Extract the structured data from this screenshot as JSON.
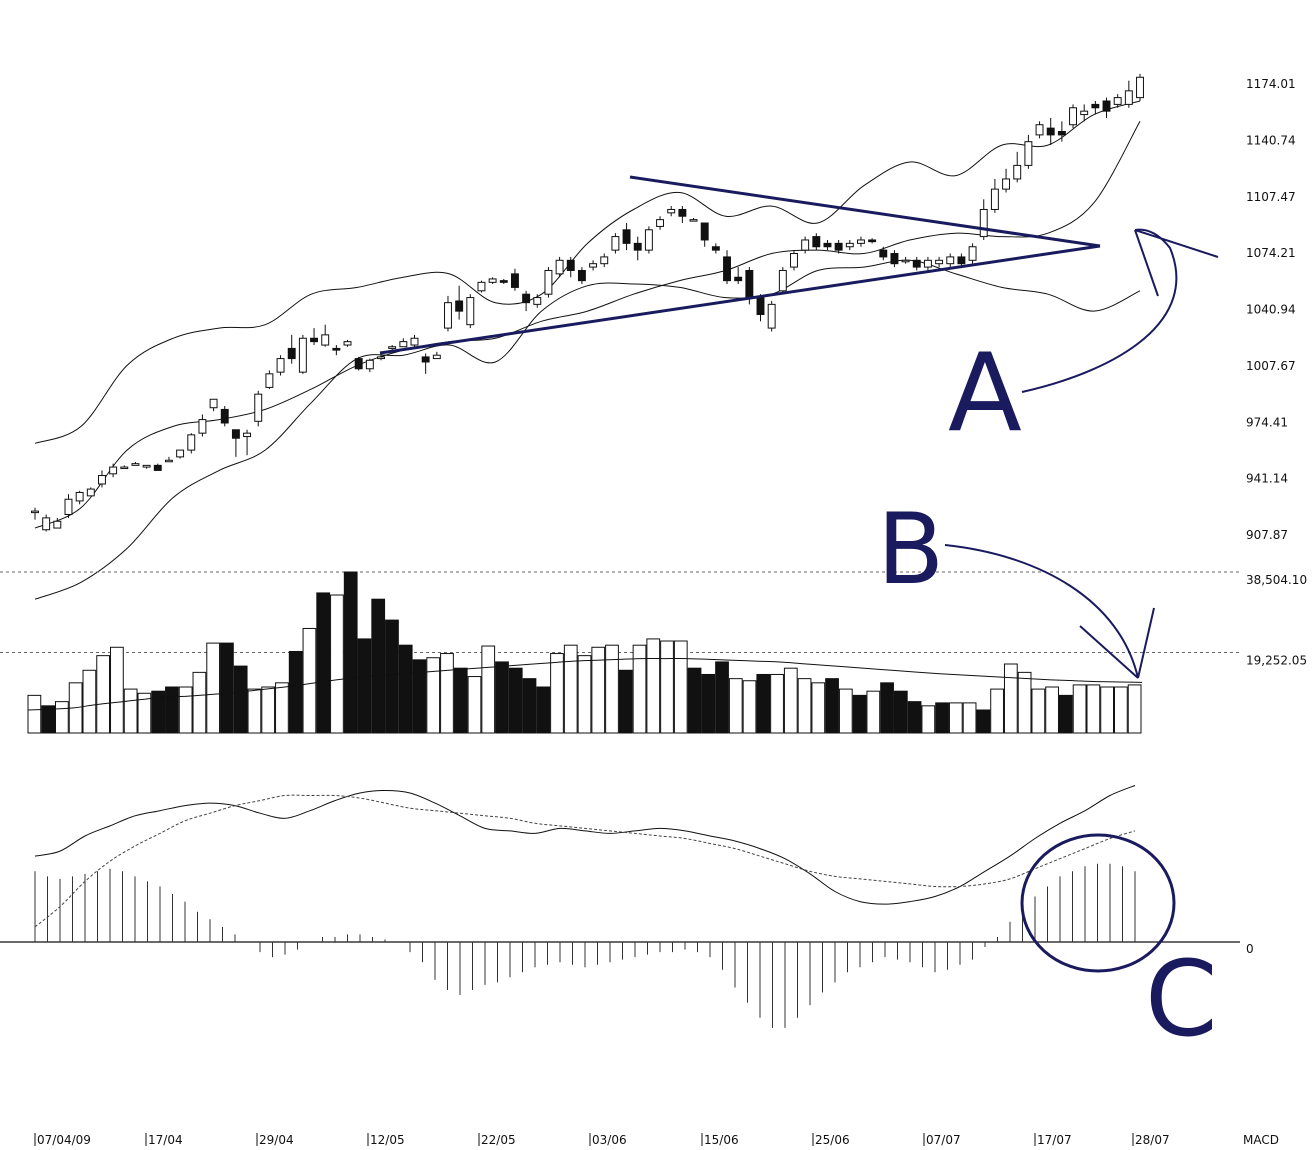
{
  "chart_data": [
    {
      "type": "candlestick",
      "panel": "price",
      "yticks": [
        "1174.01",
        "1140.74",
        "1107.47",
        "1074.21",
        "1040.94",
        "1007.67",
        "974.41",
        "941.14",
        "907.87"
      ],
      "ytick_values": [
        1174.01,
        1140.74,
        1107.47,
        1074.21,
        1040.94,
        1007.67,
        974.41,
        941.14,
        907.87
      ],
      "ylim": [
        902,
        1200
      ],
      "bollinger": {
        "upper": [
          962,
          972,
          1008,
          1024,
          1030,
          1032,
          1050,
          1054,
          1060,
          1062,
          1045,
          1050,
          1080,
          1100,
          1110,
          1096,
          1102,
          1092,
          1114,
          1128,
          1120,
          1138,
          1138,
          1156,
          1164
        ],
        "middle": [
          912,
          924,
          958,
          972,
          976,
          982,
          994,
          1008,
          1017,
          1022,
          1024,
          1034,
          1040,
          1050,
          1058,
          1064,
          1074,
          1076,
          1074,
          1082,
          1086,
          1084,
          1086,
          1104,
          1152
        ],
        "lower": [
          870,
          880,
          900,
          930,
          946,
          958,
          986,
          1012,
          1014,
          1020,
          1010,
          1040,
          1055,
          1056,
          1054,
          1048,
          1050,
          1064,
          1066,
          1070,
          1062,
          1054,
          1050,
          1040,
          1052
        ]
      },
      "candles": [
        [
          922,
          922,
          917,
          924
        ],
        [
          911,
          918,
          910,
          920
        ],
        [
          912,
          916,
          912,
          918
        ],
        [
          920,
          929,
          918,
          932
        ],
        [
          928,
          933,
          926,
          934
        ],
        [
          931,
          935,
          931,
          936
        ],
        [
          938,
          943,
          936,
          946
        ],
        [
          944,
          948,
          942,
          950
        ],
        [
          948,
          948,
          947,
          949
        ],
        [
          949,
          950,
          949,
          951
        ],
        [
          948,
          949,
          947,
          949
        ],
        [
          949,
          946,
          946,
          950
        ],
        [
          952,
          952,
          951,
          954
        ],
        [
          954,
          958,
          953,
          958
        ],
        [
          958,
          967,
          956,
          968
        ],
        [
          968,
          976,
          966,
          979
        ],
        [
          983,
          988,
          981,
          988
        ],
        [
          982,
          974,
          972,
          984
        ],
        [
          970,
          965,
          954,
          970
        ],
        [
          966,
          968,
          955,
          970
        ],
        [
          975,
          991,
          972,
          993
        ],
        [
          995,
          1003,
          994,
          1005
        ],
        [
          1004,
          1012,
          1002,
          1014
        ],
        [
          1018,
          1012,
          1009,
          1026
        ],
        [
          1004,
          1024,
          1003,
          1026
        ],
        [
          1024,
          1022,
          1020,
          1030
        ],
        [
          1020,
          1026,
          1019,
          1032
        ],
        [
          1018,
          1017,
          1014,
          1020
        ],
        [
          1020,
          1022,
          1019,
          1023
        ],
        [
          1012,
          1006,
          1005,
          1013
        ],
        [
          1006,
          1011,
          1004,
          1012
        ],
        [
          1012,
          1013,
          1011,
          1015
        ],
        [
          1018,
          1019,
          1017,
          1020
        ],
        [
          1019,
          1022,
          1019,
          1024
        ],
        [
          1020,
          1024,
          1019,
          1026
        ],
        [
          1013,
          1010,
          1003,
          1015
        ],
        [
          1012,
          1014,
          1012,
          1016
        ],
        [
          1030,
          1045,
          1028,
          1049
        ],
        [
          1046,
          1040,
          1035,
          1055
        ],
        [
          1032,
          1048,
          1030,
          1050
        ],
        [
          1052,
          1057,
          1051,
          1058
        ],
        [
          1057,
          1059,
          1056,
          1060
        ],
        [
          1058,
          1057,
          1056,
          1059
        ],
        [
          1062,
          1054,
          1052,
          1065
        ],
        [
          1050,
          1045,
          1040,
          1052
        ],
        [
          1044,
          1048,
          1042,
          1050
        ],
        [
          1050,
          1064,
          1048,
          1066
        ],
        [
          1062,
          1070,
          1060,
          1072
        ],
        [
          1070,
          1064,
          1060,
          1072
        ],
        [
          1064,
          1058,
          1056,
          1066
        ],
        [
          1066,
          1068,
          1064,
          1070
        ],
        [
          1068,
          1072,
          1066,
          1074
        ],
        [
          1076,
          1084,
          1074,
          1086
        ],
        [
          1088,
          1080,
          1076,
          1092
        ],
        [
          1080,
          1076,
          1070,
          1084
        ],
        [
          1076,
          1088,
          1074,
          1090
        ],
        [
          1090,
          1094,
          1088,
          1096
        ],
        [
          1098,
          1100,
          1096,
          1102
        ],
        [
          1100,
          1096,
          1092,
          1102
        ],
        [
          1094,
          1094,
          1093,
          1095
        ],
        [
          1092,
          1082,
          1078,
          1092
        ],
        [
          1078,
          1076,
          1074,
          1080
        ],
        [
          1072,
          1058,
          1056,
          1076
        ],
        [
          1060,
          1058,
          1056,
          1066
        ],
        [
          1064,
          1048,
          1044,
          1066
        ],
        [
          1048,
          1038,
          1034,
          1050
        ],
        [
          1030,
          1044,
          1028,
          1046
        ],
        [
          1052,
          1064,
          1050,
          1066
        ],
        [
          1066,
          1074,
          1064,
          1076
        ],
        [
          1076,
          1082,
          1074,
          1084
        ],
        [
          1084,
          1078,
          1076,
          1086
        ],
        [
          1080,
          1078,
          1076,
          1082
        ],
        [
          1080,
          1076,
          1074,
          1082
        ],
        [
          1078,
          1080,
          1076,
          1082
        ],
        [
          1080,
          1082,
          1078,
          1084
        ],
        [
          1082,
          1081,
          1080,
          1083
        ],
        [
          1076,
          1072,
          1070,
          1078
        ],
        [
          1074,
          1068,
          1066,
          1076
        ],
        [
          1070,
          1070,
          1068,
          1072
        ],
        [
          1070,
          1066,
          1064,
          1072
        ],
        [
          1066,
          1070,
          1064,
          1072
        ],
        [
          1068,
          1070,
          1066,
          1072
        ],
        [
          1068,
          1072,
          1066,
          1074
        ],
        [
          1072,
          1068,
          1066,
          1074
        ],
        [
          1070,
          1078,
          1068,
          1080
        ],
        [
          1084,
          1100,
          1082,
          1106
        ],
        [
          1100,
          1112,
          1098,
          1118
        ],
        [
          1112,
          1118,
          1110,
          1124
        ],
        [
          1118,
          1126,
          1116,
          1134
        ],
        [
          1126,
          1140,
          1124,
          1144
        ],
        [
          1144,
          1150,
          1142,
          1152
        ],
        [
          1148,
          1144,
          1138,
          1154
        ],
        [
          1146,
          1144,
          1140,
          1152
        ],
        [
          1150,
          1160,
          1148,
          1162
        ],
        [
          1156,
          1158,
          1152,
          1162
        ],
        [
          1162,
          1160,
          1156,
          1164
        ],
        [
          1164,
          1158,
          1154,
          1166
        ],
        [
          1162,
          1166,
          1160,
          1168
        ],
        [
          1162,
          1170,
          1160,
          1176
        ],
        [
          1166,
          1178,
          1164,
          1180
        ]
      ]
    },
    {
      "type": "bar",
      "panel": "volume",
      "yticks": [
        "38,504.10",
        "19,252.05"
      ],
      "ytick_values": [
        38504.1,
        19252.05
      ],
      "ylim": [
        0,
        38504.1
      ],
      "bars": [
        [
          9000,
          false
        ],
        [
          6500,
          true
        ],
        [
          7500,
          false
        ],
        [
          12000,
          false
        ],
        [
          15000,
          false
        ],
        [
          18500,
          false
        ],
        [
          20500,
          false
        ],
        [
          10500,
          false
        ],
        [
          9500,
          false
        ],
        [
          10000,
          true
        ],
        [
          11000,
          true
        ],
        [
          11000,
          false
        ],
        [
          14500,
          false
        ],
        [
          21500,
          false
        ],
        [
          21500,
          true
        ],
        [
          16000,
          true
        ],
        [
          10500,
          false
        ],
        [
          11000,
          false
        ],
        [
          12000,
          false
        ],
        [
          19500,
          true
        ],
        [
          25000,
          false
        ],
        [
          33500,
          true
        ],
        [
          33000,
          false
        ],
        [
          38504,
          true
        ],
        [
          22500,
          true
        ],
        [
          32000,
          true
        ],
        [
          27000,
          true
        ],
        [
          21000,
          true
        ],
        [
          17500,
          true
        ],
        [
          18000,
          false
        ],
        [
          19000,
          false
        ],
        [
          15500,
          true
        ],
        [
          13500,
          false
        ],
        [
          20800,
          false
        ],
        [
          17000,
          true
        ],
        [
          15500,
          true
        ],
        [
          13000,
          true
        ],
        [
          11000,
          true
        ],
        [
          19000,
          false
        ],
        [
          21000,
          false
        ],
        [
          18500,
          false
        ],
        [
          20500,
          false
        ],
        [
          21000,
          false
        ],
        [
          15000,
          true
        ],
        [
          21000,
          false
        ],
        [
          22500,
          false
        ],
        [
          22000,
          false
        ],
        [
          22000,
          false
        ],
        [
          15500,
          true
        ],
        [
          14000,
          true
        ],
        [
          17000,
          true
        ],
        [
          13000,
          false
        ],
        [
          12500,
          false
        ],
        [
          14000,
          true
        ],
        [
          14000,
          false
        ],
        [
          15500,
          false
        ],
        [
          13000,
          false
        ],
        [
          12000,
          false
        ],
        [
          13000,
          true
        ],
        [
          10500,
          false
        ],
        [
          9000,
          true
        ],
        [
          10000,
          false
        ],
        [
          12000,
          true
        ],
        [
          10000,
          true
        ],
        [
          7500,
          true
        ],
        [
          6500,
          false
        ],
        [
          7200,
          true
        ],
        [
          7200,
          false
        ],
        [
          7200,
          false
        ],
        [
          5500,
          true
        ],
        [
          10500,
          false
        ],
        [
          16500,
          false
        ],
        [
          14500,
          false
        ],
        [
          10500,
          false
        ],
        [
          11000,
          false
        ],
        [
          9000,
          true
        ],
        [
          11500,
          false
        ],
        [
          11500,
          false
        ],
        [
          11000,
          false
        ],
        [
          11000,
          false
        ],
        [
          11500,
          false
        ]
      ],
      "average": [
        5500,
        5700,
        6000,
        6800,
        7400,
        8000,
        8600,
        8800,
        9200,
        9600,
        10200,
        10800,
        11500,
        12300,
        13000,
        13600,
        14000,
        14400,
        14800,
        15200,
        15600,
        16000,
        16400,
        16800,
        17200,
        17400,
        17600,
        17800,
        17800,
        17800,
        17600,
        17400,
        17200,
        17000,
        16600,
        16200,
        15800,
        15400,
        15000,
        14600,
        14200,
        13900,
        13600,
        13300,
        13000,
        12700,
        12500,
        12300,
        12200,
        12100
      ]
    },
    {
      "type": "macd",
      "panel": "macd",
      "yticks": [
        "0"
      ],
      "ytick_values": [
        0
      ],
      "ylim": [
        -24,
        29
      ],
      "macd": [
        17,
        18,
        21,
        23,
        25,
        26,
        27,
        27.5,
        27,
        25.5,
        24.5,
        26,
        28,
        29.5,
        30,
        29.5,
        27.5,
        25,
        22.5,
        22,
        21.5,
        22.5,
        22,
        21.5,
        22,
        22.5,
        22,
        21,
        20,
        18.5,
        16.5,
        13.5,
        10,
        8,
        7.5,
        8,
        9,
        11,
        14,
        17,
        20.5,
        23.5,
        26,
        29,
        31
      ],
      "signal": [
        3,
        7,
        12,
        16,
        19,
        21.5,
        24,
        25.5,
        27,
        28,
        29,
        29,
        29,
        28.5,
        27.5,
        26.5,
        26,
        25.5,
        25,
        24.5,
        23.5,
        23,
        22.5,
        22,
        21.5,
        21,
        20.5,
        19.5,
        18.5,
        17,
        15.5,
        14,
        13,
        12.5,
        12,
        11.5,
        11,
        11,
        11.5,
        12.5,
        14.5,
        16.5,
        18.5,
        20.5,
        22
      ],
      "histogram": [
        14,
        13,
        12.5,
        13,
        13.5,
        14,
        14.5,
        14,
        13,
        12,
        11,
        9.5,
        8,
        6,
        4.5,
        3,
        1.5,
        0,
        -2,
        -3,
        -2.5,
        -1.5,
        0,
        1,
        1,
        1.5,
        1.5,
        1,
        0.5,
        0,
        -2,
        -4,
        -7.5,
        -9.5,
        -10.5,
        -9.5,
        -8.5,
        -8,
        -7,
        -6,
        -5,
        -4.5,
        -4,
        -4.5,
        -5,
        -4.5,
        -4,
        -3.5,
        -3,
        -2.5,
        -2,
        -2,
        -1.5,
        -2,
        -3,
        -5.5,
        -9,
        -12,
        -15,
        -17,
        -17,
        -15,
        -12.5,
        -10,
        -8,
        -6,
        -5,
        -4,
        -3,
        -3.5,
        -4,
        -5,
        -6,
        -5.5,
        -4.5,
        -3.5,
        -1,
        1,
        4,
        6.5,
        9,
        11,
        13,
        14,
        15,
        15.5,
        15.5,
        15,
        14
      ]
    }
  ],
  "xticks": [
    "07/04/09",
    "17/04",
    "29/04",
    "12/05",
    "22/05",
    "03/06",
    "15/06",
    "25/06",
    "07/07",
    "17/07",
    "28/07"
  ],
  "panel_label": "MACD",
  "annotations": [
    "A",
    "B",
    "C"
  ],
  "colors": {
    "annotation": "#1a1a5e",
    "grid": "#666666",
    "ink": "#111111"
  }
}
